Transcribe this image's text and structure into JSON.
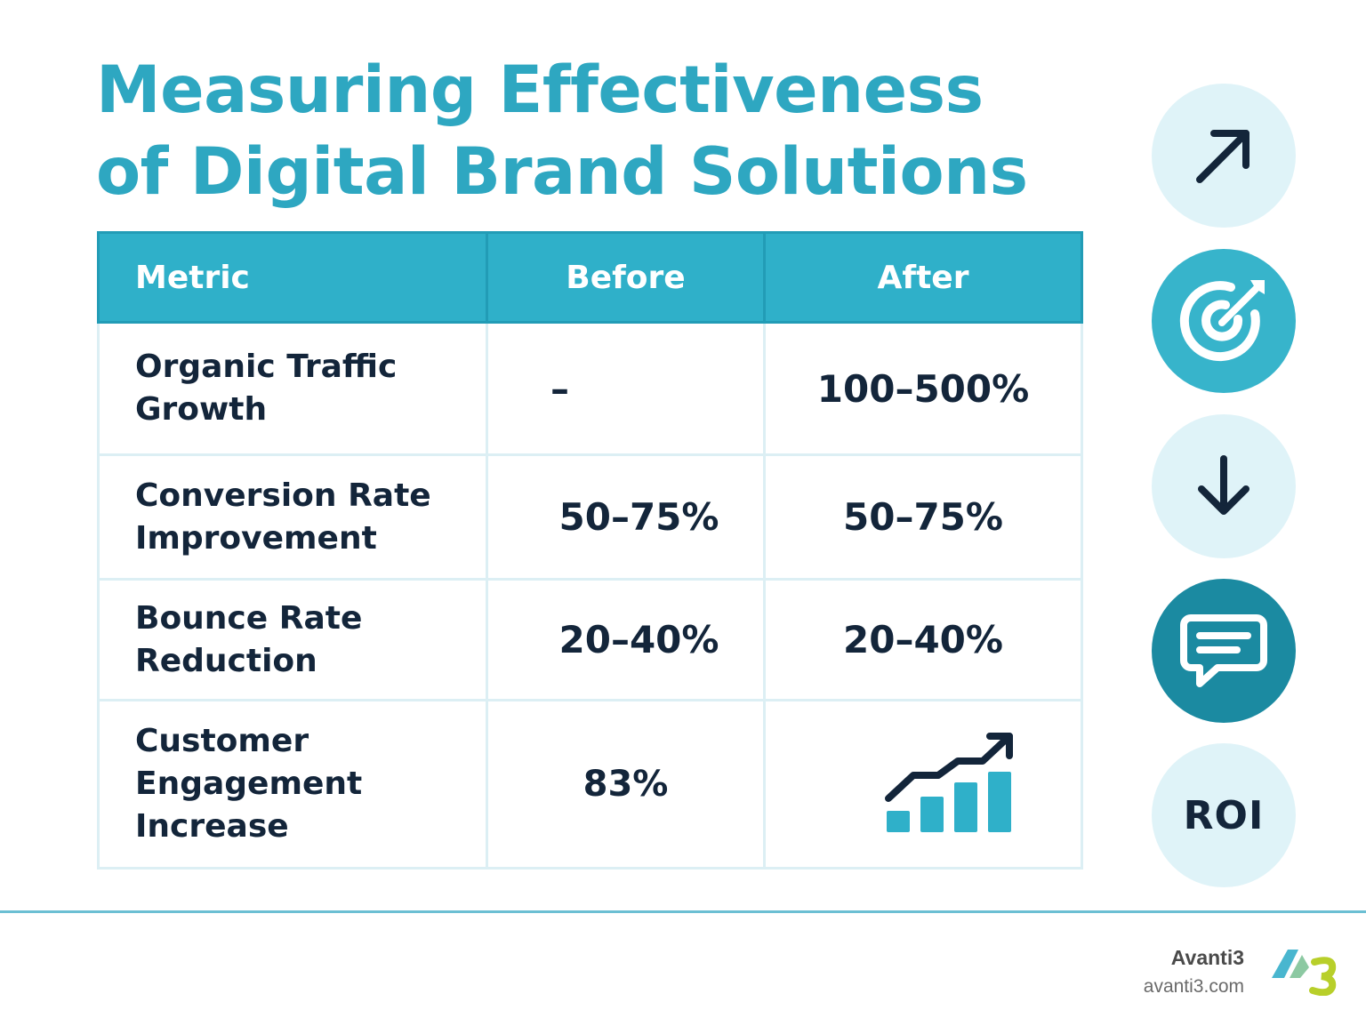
{
  "title": {
    "line1": "Measuring Effectiveness",
    "line2": "of Digital Brand Solutions"
  },
  "table": {
    "headers": [
      "Metric",
      "Before",
      "After"
    ],
    "rows": [
      {
        "metric_line1": "Organic Traffic",
        "metric_line2": "Growth",
        "metric_line3": "",
        "before": "–",
        "after": "100–500%"
      },
      {
        "metric_line1": "Conversion Rate",
        "metric_line2": "Improvement",
        "metric_line3": "",
        "before": "50–75%",
        "after": "50–75%"
      },
      {
        "metric_line1": "Bounce Rate",
        "metric_line2": "Reduction",
        "metric_line3": "",
        "before": "20–40%",
        "after": "20–40%"
      },
      {
        "metric_line1": "Customer",
        "metric_line2": "Engagement",
        "metric_line3": "Increase",
        "before": "83%",
        "after_icon": "growth-bar-chart-icon"
      }
    ]
  },
  "side_icons": [
    {
      "icon": "arrow-up-right-icon"
    },
    {
      "icon": "target-icon"
    },
    {
      "icon": "arrow-down-icon"
    },
    {
      "icon": "chat-bubble-icon"
    },
    {
      "label": "ROI"
    }
  ],
  "footer": {
    "brand_name": "Avanti3",
    "brand_url": "avanti3.com"
  },
  "colors": {
    "accent": "#2ea7c1",
    "header_bg": "#2fb0c9",
    "text_dark": "#13253a",
    "circle_light": "#dff3f8",
    "circle_mid": "#37b4cb",
    "circle_dark": "#1b8aa1"
  }
}
